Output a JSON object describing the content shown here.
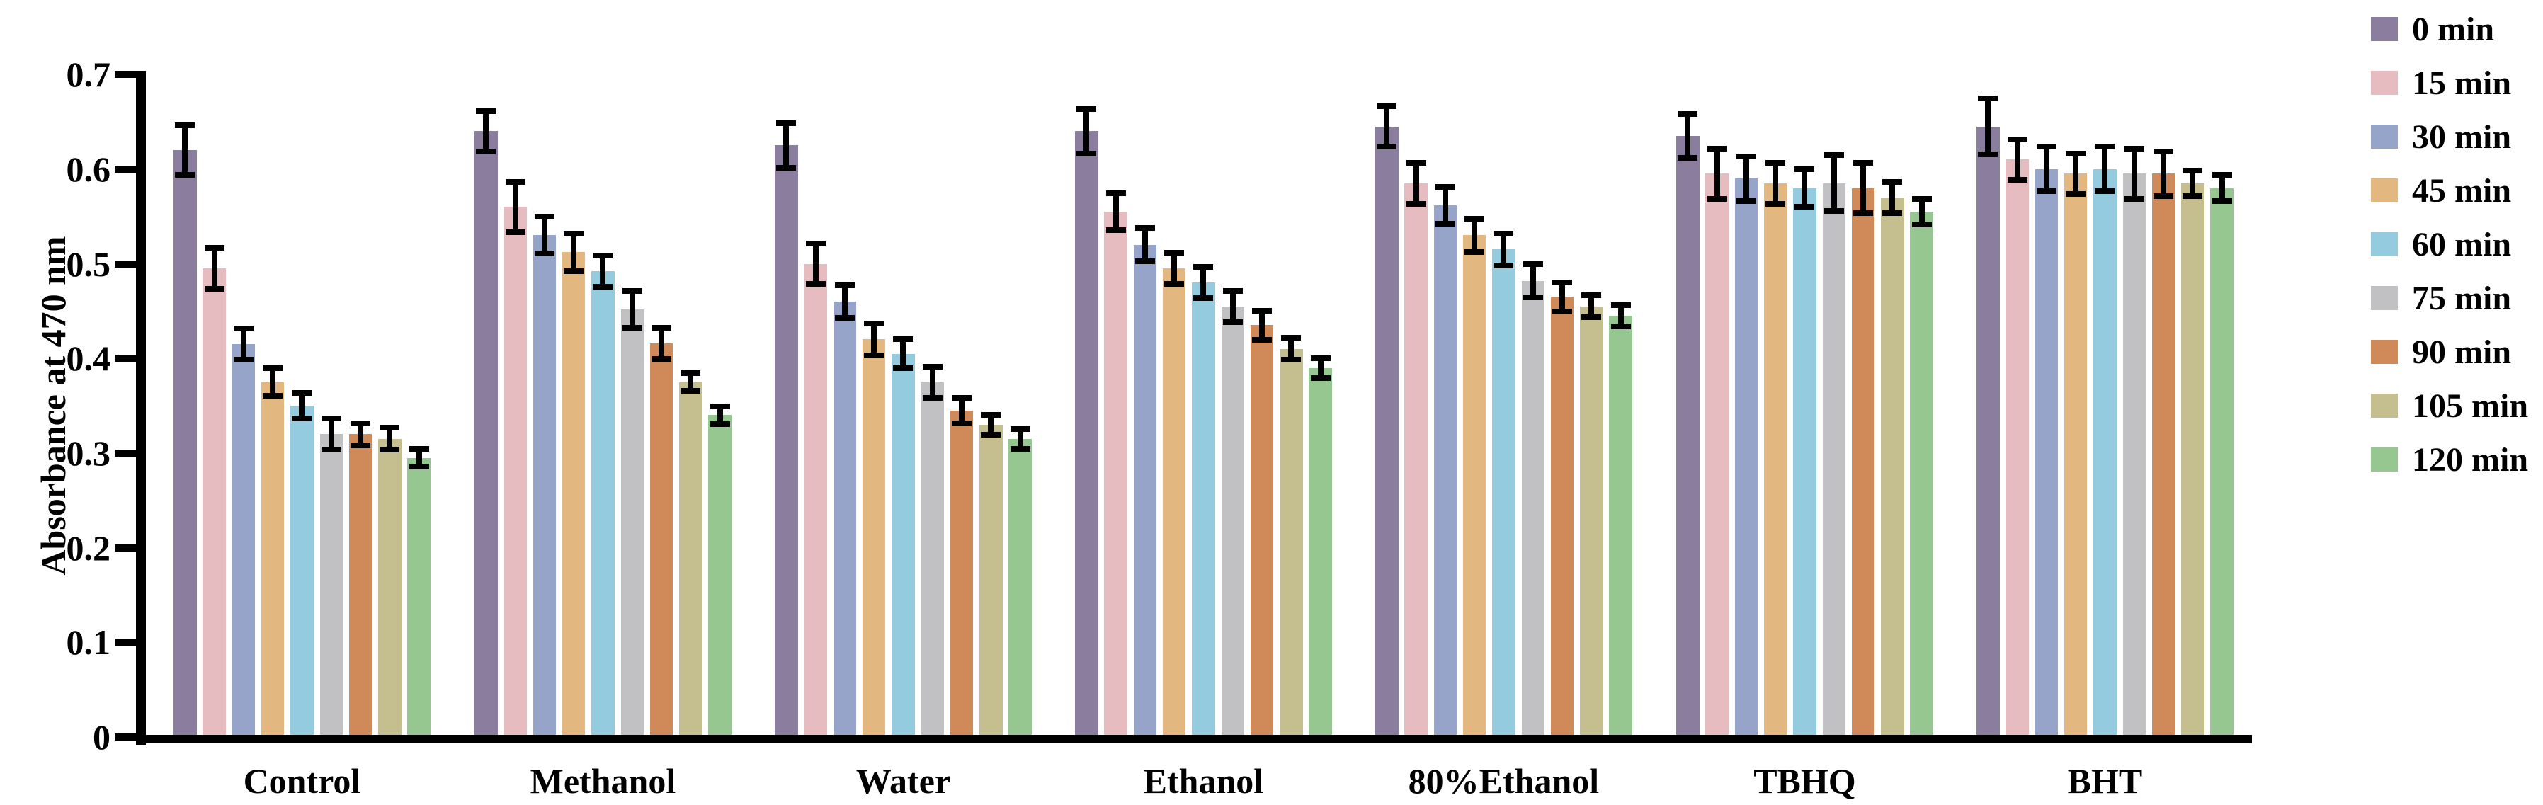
{
  "chart_data": {
    "type": "bar",
    "title": "",
    "ylabel": "Absorbance at 470 nm",
    "xlabel": "",
    "ylim": [
      0,
      0.7
    ],
    "yticks": [
      "0",
      "0.1",
      "0.2",
      "0.3",
      "0.4",
      "0.5",
      "0.6",
      "0.7"
    ],
    "grid": false,
    "legend_position": "right-outside-top",
    "error_bars": true,
    "categories": [
      "Control",
      "Methanol",
      "Water",
      "Ethanol",
      "80%Ethanol",
      "TBHQ",
      "BHT"
    ],
    "series": [
      {
        "name": "0 min",
        "color": "#8B7D9E",
        "values": [
          0.62,
          0.64,
          0.625,
          0.64,
          0.645,
          0.635,
          0.645
        ],
        "errors": [
          0.025,
          0.02,
          0.022,
          0.022,
          0.02,
          0.022,
          0.028
        ]
      },
      {
        "name": "15 min",
        "color": "#E7BCC0",
        "values": [
          0.495,
          0.56,
          0.5,
          0.555,
          0.585,
          0.595,
          0.61
        ],
        "errors": [
          0.02,
          0.025,
          0.02,
          0.018,
          0.02,
          0.025,
          0.02
        ]
      },
      {
        "name": "30 min",
        "color": "#95A4C8",
        "values": [
          0.415,
          0.53,
          0.46,
          0.52,
          0.562,
          0.59,
          0.6
        ],
        "errors": [
          0.015,
          0.018,
          0.016,
          0.016,
          0.018,
          0.022,
          0.022
        ]
      },
      {
        "name": "45 min",
        "color": "#E3B880",
        "values": [
          0.375,
          0.512,
          0.42,
          0.495,
          0.53,
          0.585,
          0.595
        ],
        "errors": [
          0.013,
          0.018,
          0.015,
          0.015,
          0.016,
          0.02,
          0.02
        ]
      },
      {
        "name": "60 min",
        "color": "#94CBDE",
        "values": [
          0.35,
          0.492,
          0.405,
          0.48,
          0.515,
          0.58,
          0.6
        ],
        "errors": [
          0.012,
          0.015,
          0.014,
          0.015,
          0.015,
          0.018,
          0.022
        ]
      },
      {
        "name": "75 min",
        "color": "#C1C1C3",
        "values": [
          0.32,
          0.452,
          0.375,
          0.455,
          0.482,
          0.585,
          0.595
        ],
        "errors": [
          0.015,
          0.018,
          0.015,
          0.015,
          0.016,
          0.028,
          0.025
        ]
      },
      {
        "name": "90 min",
        "color": "#D08A59",
        "values": [
          0.32,
          0.416,
          0.345,
          0.435,
          0.465,
          0.58,
          0.595
        ],
        "errors": [
          0.01,
          0.015,
          0.012,
          0.014,
          0.014,
          0.025,
          0.022
        ]
      },
      {
        "name": "105 min",
        "color": "#C5BF90",
        "values": [
          0.315,
          0.375,
          0.33,
          0.41,
          0.455,
          0.57,
          0.585
        ],
        "errors": [
          0.01,
          0.008,
          0.009,
          0.01,
          0.01,
          0.015,
          0.012
        ]
      },
      {
        "name": "120 min",
        "color": "#96C790",
        "values": [
          0.295,
          0.34,
          0.315,
          0.39,
          0.445,
          0.555,
          0.58
        ],
        "errors": [
          0.008,
          0.008,
          0.009,
          0.009,
          0.01,
          0.012,
          0.012
        ]
      }
    ]
  },
  "colors": {
    "axis": "#000000",
    "text": "#000000",
    "background": "#ffffff"
  }
}
